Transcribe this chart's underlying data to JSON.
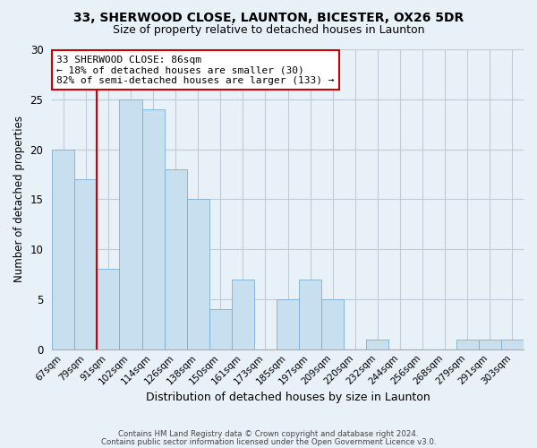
{
  "title": "33, SHERWOOD CLOSE, LAUNTON, BICESTER, OX26 5DR",
  "subtitle": "Size of property relative to detached houses in Launton",
  "xlabel": "Distribution of detached houses by size in Launton",
  "ylabel": "Number of detached properties",
  "bar_labels": [
    "67sqm",
    "79sqm",
    "91sqm",
    "102sqm",
    "114sqm",
    "126sqm",
    "138sqm",
    "150sqm",
    "161sqm",
    "173sqm",
    "185sqm",
    "197sqm",
    "209sqm",
    "220sqm",
    "232sqm",
    "244sqm",
    "256sqm",
    "268sqm",
    "279sqm",
    "291sqm",
    "303sqm"
  ],
  "bar_values": [
    20,
    17,
    8,
    25,
    24,
    18,
    15,
    4,
    7,
    0,
    5,
    7,
    5,
    0,
    1,
    0,
    0,
    0,
    1,
    1,
    1
  ],
  "bar_color": "#c8dff0",
  "bar_edge_color": "#7bafd4",
  "vline_x": 1.5,
  "vline_color": "#cc0000",
  "ylim": [
    0,
    30
  ],
  "annotation_box_text": "33 SHERWOOD CLOSE: 86sqm\n← 18% of detached houses are smaller (30)\n82% of semi-detached houses are larger (133) →",
  "footer_line1": "Contains HM Land Registry data © Crown copyright and database right 2024.",
  "footer_line2": "Contains public sector information licensed under the Open Government Licence v3.0.",
  "background_color": "#e8f0f8",
  "grid_color": "#c0ccd8",
  "title_fontsize": 10,
  "subtitle_fontsize": 9
}
